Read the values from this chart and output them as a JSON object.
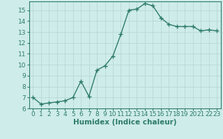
{
  "xlabel": "Humidex (Indice chaleur)",
  "x": [
    0,
    1,
    2,
    3,
    4,
    5,
    6,
    7,
    8,
    9,
    10,
    11,
    12,
    13,
    14,
    15,
    16,
    17,
    18,
    19,
    20,
    21,
    22,
    23
  ],
  "y": [
    7.0,
    6.4,
    6.5,
    6.6,
    6.7,
    7.0,
    8.5,
    7.1,
    9.5,
    9.9,
    10.8,
    12.8,
    15.0,
    15.1,
    15.6,
    15.4,
    14.3,
    13.7,
    13.5,
    13.5,
    13.5,
    13.1,
    13.2,
    13.1
  ],
  "line_color": "#2e7b6b",
  "marker": "+",
  "marker_size": 4,
  "bg_color": "#ceecea",
  "grid_color": "#b8d8d5",
  "ylim": [
    6,
    15.8
  ],
  "xlim": [
    -0.5,
    23.5
  ],
  "yticks": [
    6,
    7,
    8,
    9,
    10,
    11,
    12,
    13,
    14,
    15
  ],
  "xticks": [
    0,
    1,
    2,
    3,
    4,
    5,
    6,
    7,
    8,
    9,
    10,
    11,
    12,
    13,
    14,
    15,
    16,
    17,
    18,
    19,
    20,
    21,
    22,
    23
  ],
  "tick_label_fontsize": 6.5,
  "xlabel_fontsize": 7.5,
  "linewidth": 1.0
}
